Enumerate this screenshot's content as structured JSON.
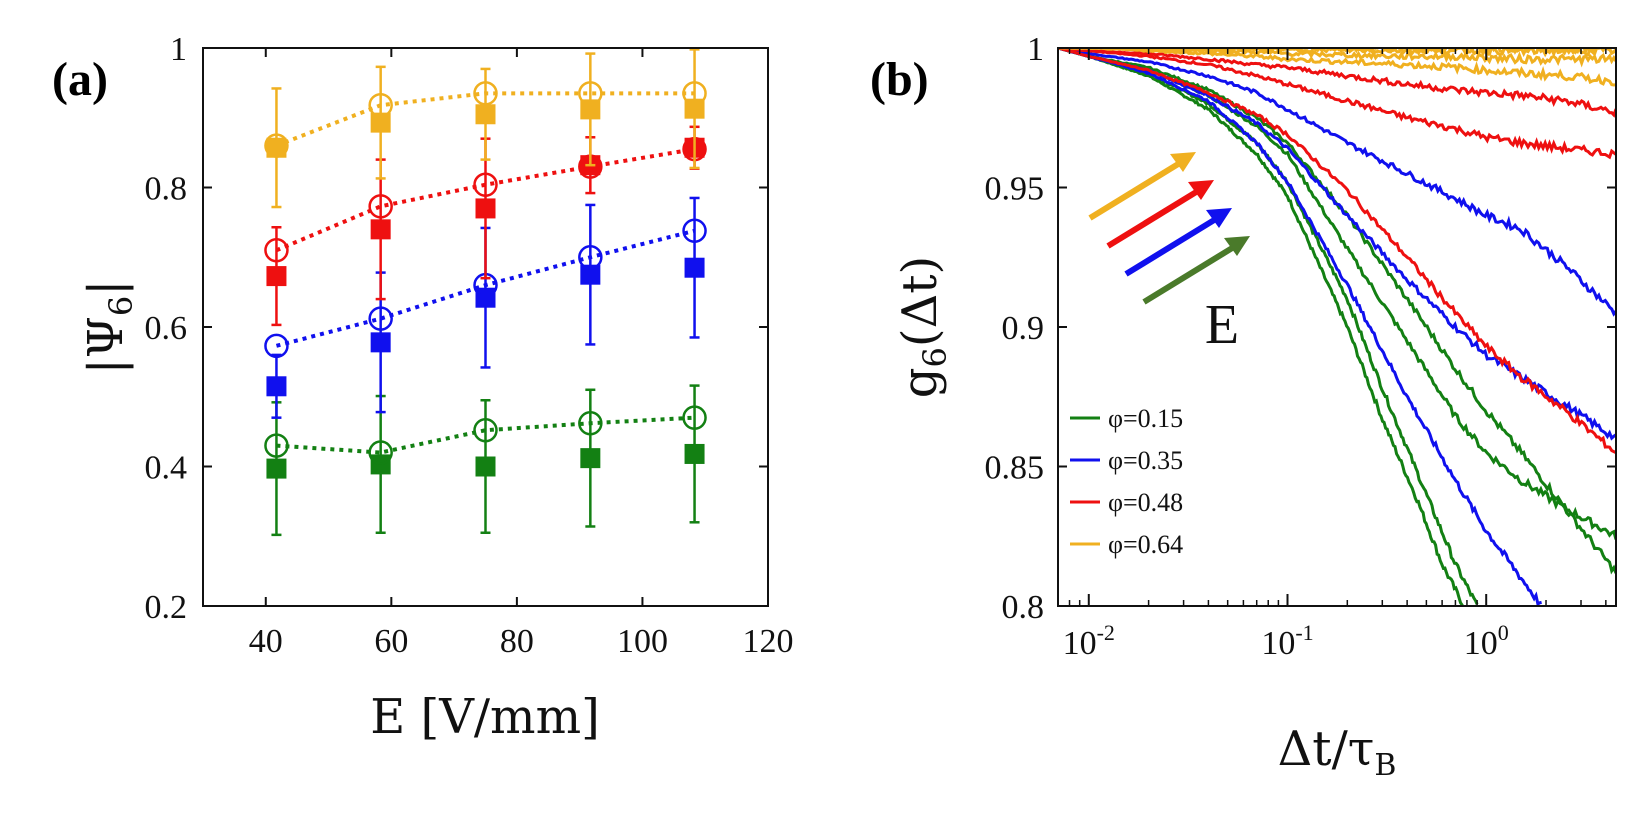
{
  "figure": {
    "panel_a_label": "(a)",
    "panel_b_label": "(b)"
  },
  "colors": {
    "green": "#138013",
    "blue": "#1010ee",
    "red": "#ee1010",
    "yellow": "#f0b020",
    "olive": "#4a7a2a"
  },
  "chart_data": [
    {
      "type": "scatter",
      "panel": "(a)",
      "xlabel": "E [V/mm]",
      "ylabel": "|Ψ6|",
      "ylabel_main": "|Ψ",
      "ylabel_sub": "6",
      "ylabel_end": "|",
      "xlim": [
        30,
        120
      ],
      "ylim": [
        0.2,
        1.0
      ],
      "xticks": [
        40,
        60,
        80,
        100,
        120
      ],
      "yticks": [
        0.2,
        0.4,
        0.6,
        0.8,
        1.0
      ],
      "xtick_labels": [
        "40",
        "60",
        "80",
        "100",
        "120"
      ],
      "ytick_labels": [
        "0.2",
        "0.4",
        "0.6",
        "0.8",
        "1"
      ],
      "x": [
        41.7,
        58.3,
        75,
        91.7,
        108.3
      ],
      "series": [
        {
          "name": "phi=0.15",
          "color_key": "green",
          "open_circles": [
            0.43,
            0.42,
            0.452,
            0.462,
            0.47
          ],
          "filled_squares": [
            0.397,
            0.403,
            0.4,
            0.412,
            0.418
          ],
          "errors": [
            0.095,
            0.098,
            0.095,
            0.098,
            0.098
          ]
        },
        {
          "name": "phi=0.35",
          "color_key": "blue",
          "open_circles": [
            0.573,
            0.612,
            0.66,
            0.7,
            0.738
          ],
          "filled_squares": [
            0.515,
            0.578,
            0.642,
            0.675,
            0.685
          ],
          "errors": [
            0.045,
            0.1,
            0.1,
            0.1,
            0.1
          ]
        },
        {
          "name": "phi=0.48",
          "color_key": "red",
          "open_circles": [
            0.71,
            0.773,
            0.804,
            0.83,
            0.855
          ],
          "filled_squares": [
            0.673,
            0.74,
            0.77,
            0.832,
            0.857
          ],
          "errors": [
            0.07,
            0.1,
            0.1,
            0.04,
            0.03
          ]
        },
        {
          "name": "phi=0.64",
          "color_key": "yellow",
          "open_circles": [
            0.86,
            0.918,
            0.935,
            0.935,
            0.935
          ],
          "filled_squares": [
            0.857,
            0.893,
            0.905,
            0.912,
            0.913
          ],
          "errors": [
            0.085,
            0.08,
            0.065,
            0.08,
            0.085
          ]
        }
      ]
    },
    {
      "type": "line",
      "panel": "(b)",
      "xlabel": "Δt/τB",
      "xlabel_main": "Δt/τ",
      "xlabel_sub": "B",
      "ylabel": "g6(Δt)",
      "ylabel_main": "g",
      "ylabel_sub": "6",
      "ylabel_end": "(Δt)",
      "xscale": "log",
      "xlim": [
        0.007,
        4.5
      ],
      "ylim": [
        0.8,
        1.0
      ],
      "xticks": [
        0.01,
        0.1,
        1
      ],
      "xtick_labels": [
        {
          "base": "10",
          "exp": "-2"
        },
        {
          "base": "10",
          "exp": "-1"
        },
        {
          "base": "10",
          "exp": "0"
        }
      ],
      "yticks": [
        0.8,
        0.85,
        0.9,
        0.95,
        1.0
      ],
      "ytick_labels": [
        "0.8",
        "0.85",
        "0.9",
        "0.95",
        "1"
      ],
      "legend": [
        {
          "label": "φ=0.15",
          "color_key": "green"
        },
        {
          "label": "φ=0.35",
          "color_key": "blue"
        },
        {
          "label": "φ=0.48",
          "color_key": "red"
        },
        {
          "label": "φ=0.64",
          "color_key": "yellow"
        }
      ],
      "legend_position": "bottom-left",
      "arrow_label": "E",
      "series": [
        {
          "name": "phi=0.15 (a)",
          "color_key": "green",
          "x": [
            0.007,
            0.01,
            0.02,
            0.04,
            0.07,
            0.1,
            0.2,
            0.3,
            0.45,
            0.6,
            0.77
          ],
          "y": [
            1.0,
            0.997,
            0.99,
            0.978,
            0.962,
            0.947,
            0.9,
            0.867,
            0.838,
            0.815,
            0.8
          ]
        },
        {
          "name": "phi=0.15 (b)",
          "color_key": "green",
          "x": [
            0.007,
            0.01,
            0.02,
            0.04,
            0.07,
            0.1,
            0.2,
            0.3,
            0.5,
            0.7,
            0.9
          ],
          "y": [
            1.0,
            0.997,
            0.991,
            0.98,
            0.966,
            0.952,
            0.91,
            0.878,
            0.84,
            0.815,
            0.8
          ]
        },
        {
          "name": "phi=0.15 (c)",
          "color_key": "green",
          "x": [
            0.007,
            0.01,
            0.02,
            0.04,
            0.07,
            0.1,
            0.2,
            0.4,
            0.7,
            1.0,
            1.5,
            2.5,
            4.5
          ],
          "y": [
            1.0,
            0.997,
            0.992,
            0.983,
            0.972,
            0.962,
            0.928,
            0.895,
            0.868,
            0.855,
            0.845,
            0.835,
            0.825
          ]
        },
        {
          "name": "phi=0.15 (d)",
          "color_key": "green",
          "x": [
            0.007,
            0.01,
            0.02,
            0.04,
            0.07,
            0.1,
            0.2,
            0.4,
            0.7,
            1.0,
            1.5,
            2.5,
            4.5
          ],
          "y": [
            1.0,
            0.997,
            0.993,
            0.985,
            0.975,
            0.966,
            0.94,
            0.91,
            0.885,
            0.87,
            0.855,
            0.835,
            0.812
          ]
        },
        {
          "name": "phi=0.35 (a)",
          "color_key": "blue",
          "x": [
            0.007,
            0.01,
            0.02,
            0.04,
            0.07,
            0.1,
            0.2,
            0.4,
            0.7,
            1.0,
            1.5,
            1.9
          ],
          "y": [
            1.0,
            0.997,
            0.991,
            0.981,
            0.966,
            0.952,
            0.915,
            0.875,
            0.845,
            0.827,
            0.81,
            0.8
          ]
        },
        {
          "name": "phi=0.35 (b)",
          "color_key": "blue",
          "x": [
            0.007,
            0.01,
            0.02,
            0.04,
            0.07,
            0.1,
            0.2,
            0.4,
            0.7,
            1.0,
            1.5,
            2.5,
            4.5
          ],
          "y": [
            1.0,
            0.997,
            0.992,
            0.983,
            0.973,
            0.964,
            0.94,
            0.917,
            0.9,
            0.89,
            0.882,
            0.872,
            0.86
          ]
        },
        {
          "name": "phi=0.35 (c)",
          "color_key": "blue",
          "x": [
            0.007,
            0.01,
            0.02,
            0.04,
            0.07,
            0.1,
            0.2,
            0.4,
            0.7,
            1.0,
            1.5,
            2.5,
            4.5
          ],
          "y": [
            1.0,
            0.998,
            0.995,
            0.99,
            0.984,
            0.978,
            0.966,
            0.955,
            0.946,
            0.94,
            0.935,
            0.922,
            0.905
          ]
        },
        {
          "name": "phi=0.48 (a)",
          "color_key": "red",
          "x": [
            0.007,
            0.01,
            0.02,
            0.04,
            0.07,
            0.1,
            0.2,
            0.4,
            0.7,
            1.0,
            1.5,
            2.5,
            4.5
          ],
          "y": [
            1.0,
            0.997,
            0.992,
            0.984,
            0.976,
            0.969,
            0.949,
            0.925,
            0.905,
            0.893,
            0.882,
            0.87,
            0.855
          ]
        },
        {
          "name": "phi=0.48 (b)",
          "color_key": "red",
          "x": [
            0.007,
            0.01,
            0.02,
            0.04,
            0.07,
            0.1,
            0.2,
            0.4,
            0.7,
            1.0,
            1.5,
            2.5,
            4.5
          ],
          "y": [
            1.0,
            0.999,
            0.997,
            0.994,
            0.99,
            0.987,
            0.981,
            0.975,
            0.971,
            0.968,
            0.966,
            0.964,
            0.962
          ]
        },
        {
          "name": "phi=0.48 (c)",
          "color_key": "red",
          "x": [
            0.007,
            0.01,
            0.02,
            0.04,
            0.07,
            0.1,
            0.2,
            0.4,
            0.7,
            1.0,
            1.5,
            2.5,
            4.5
          ],
          "y": [
            1.0,
            0.999,
            0.998,
            0.996,
            0.994,
            0.993,
            0.99,
            0.987,
            0.985,
            0.984,
            0.983,
            0.981,
            0.977
          ]
        },
        {
          "name": "phi=0.64 (a)",
          "color_key": "yellow",
          "x": [
            0.007,
            0.01,
            0.02,
            0.04,
            0.07,
            0.1,
            0.2,
            0.4,
            0.7,
            1.0,
            1.5,
            2.5,
            4.5
          ],
          "y": [
            1.0,
            1.0,
            0.999,
            0.998,
            0.997,
            0.996,
            0.995,
            0.994,
            0.993,
            0.992,
            0.991,
            0.99,
            0.988
          ]
        },
        {
          "name": "phi=0.64 (b)",
          "color_key": "yellow",
          "x": [
            0.007,
            0.01,
            0.02,
            0.04,
            0.07,
            0.1,
            0.2,
            0.4,
            0.7,
            1.0,
            1.5,
            2.5,
            4.5
          ],
          "y": [
            1.0,
            1.0,
            0.9995,
            0.999,
            0.9985,
            0.998,
            0.9975,
            0.997,
            0.997,
            0.9965,
            0.996,
            0.996,
            0.996
          ]
        },
        {
          "name": "phi=0.64 (c)",
          "color_key": "yellow",
          "x": [
            0.007,
            0.1,
            1.0,
            4.5
          ],
          "y": [
            1.0,
            0.9995,
            0.999,
            0.999
          ]
        },
        {
          "name": "phi=0.64 (d)",
          "color_key": "yellow",
          "x": [
            0.007,
            0.1,
            1.0,
            4.5
          ],
          "y": [
            1.0,
            0.9998,
            0.9996,
            0.9995
          ]
        }
      ]
    }
  ]
}
